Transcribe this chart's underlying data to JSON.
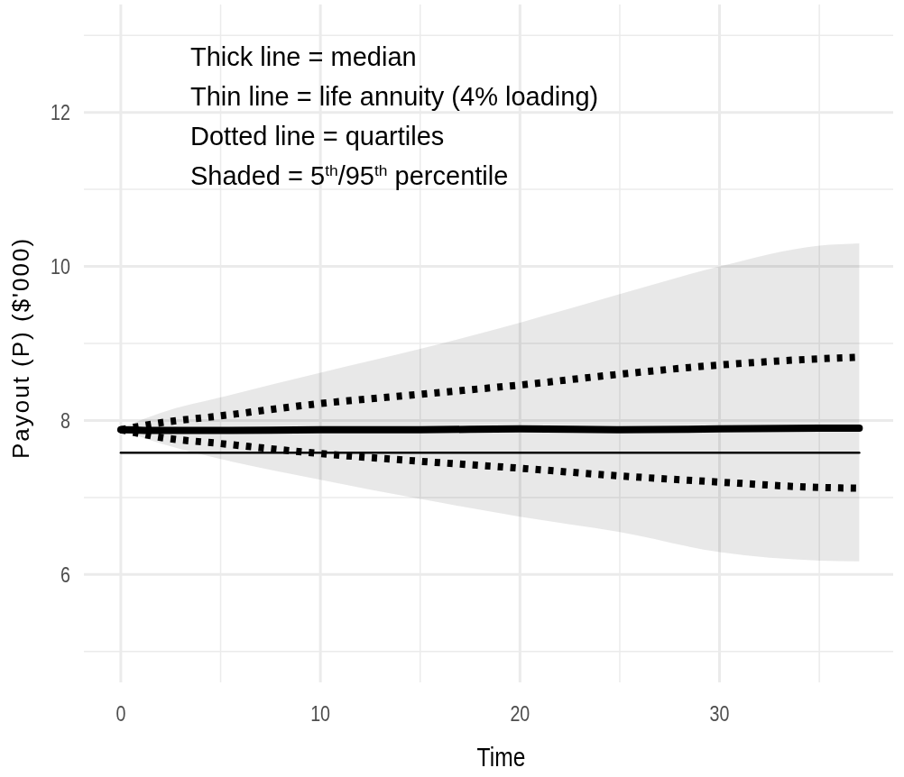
{
  "chart_data": {
    "type": "line",
    "xlabel": "Time",
    "ylabel": "Payout (P) ($'000)",
    "annotations": [
      "Thick line = median",
      "Thin line = life annuity (4% loading)",
      "Dotted line = quartiles",
      "Shaded = 5$^{th}$/95$^{th}$ percentile"
    ],
    "xlim": [
      -1.85,
      38.7
    ],
    "ylim": [
      4.6,
      13.4
    ],
    "xticks": [
      0,
      {
        "value": 5,
        "label": null
      },
      10,
      {
        "value": 15,
        "label": null
      },
      20,
      {
        "value": 25,
        "label": null
      },
      30,
      {
        "value": 35,
        "label": null
      }
    ],
    "yticks": [
      {
        "value": 5,
        "label": null
      },
      6,
      {
        "value": 7,
        "label": null
      },
      8,
      {
        "value": 9,
        "label": null
      },
      10,
      {
        "value": 11,
        "label": null
      },
      12,
      {
        "value": 13,
        "label": null
      }
    ],
    "grid": true,
    "series": [
      {
        "color": "#000000",
        "line_style": "solid",
        "x": [
          0,
          2,
          5,
          10,
          15,
          20,
          25,
          30,
          35,
          37
        ],
        "values": [
          7.88,
          7.87,
          7.87,
          7.88,
          7.88,
          7.89,
          7.88,
          7.89,
          7.9,
          7.9
        ],
        "lower": [
          7.88,
          7.7,
          7.5,
          7.23,
          6.98,
          6.75,
          6.55,
          6.29,
          6.18,
          6.17
        ],
        "upper": [
          7.9,
          8.1,
          8.3,
          8.62,
          8.93,
          9.27,
          9.64,
          10.0,
          10.27,
          10.3
        ]
      },
      {
        "color": "#000000",
        "line_style": "solid",
        "x": [
          0,
          37
        ],
        "values": [
          7.58,
          7.58
        ]
      },
      {
        "color": "#000000",
        "line_style": "dotted",
        "x": [
          0,
          2,
          5,
          10,
          15,
          20,
          25,
          30,
          35,
          37
        ],
        "values": [
          7.88,
          7.97,
          8.06,
          8.22,
          8.34,
          8.46,
          8.6,
          8.72,
          8.8,
          8.82
        ]
      },
      {
        "color": "#000000",
        "line_style": "dotted",
        "x": [
          0,
          2,
          5,
          10,
          15,
          20,
          25,
          30,
          35,
          37
        ],
        "values": [
          7.88,
          7.78,
          7.7,
          7.57,
          7.47,
          7.38,
          7.28,
          7.2,
          7.13,
          7.12
        ]
      }
    ]
  }
}
